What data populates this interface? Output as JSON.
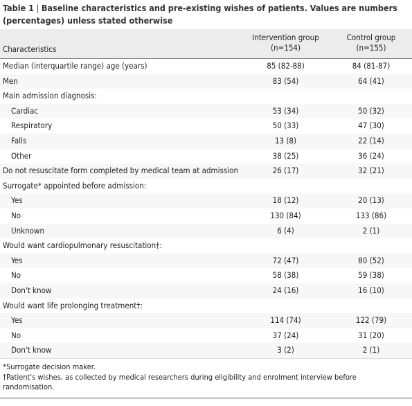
{
  "table_label": "Table 1",
  "title": "Baseline characteristics and pre-existing wishes of patients. Values are numbers (percentages) unless stated otherwise",
  "header": [
    "Characteristics",
    "Intervention group\n(n=154)",
    "Control group\n(n=155)"
  ],
  "rows": [
    {
      "label": "Median (interquartile range) age (years)",
      "cells": [
        "85 (82-88)",
        "84 (81-87)"
      ]
    },
    {
      "label": "Men",
      "cells": [
        "83 (54)",
        "64 (41)"
      ]
    },
    {
      "label": "Main admission diagnosis:"
    },
    {
      "label": "Cardiac",
      "indent": true,
      "cells": [
        "53 (34)",
        "50 (32)"
      ]
    },
    {
      "label": "Respiratory",
      "indent": true,
      "cells": [
        "50 (33)",
        "47 (30)"
      ]
    },
    {
      "label": "Falls",
      "indent": true,
      "cells": [
        "13 (8)",
        "22 (14)"
      ]
    },
    {
      "label": "Other",
      "indent": true,
      "cells": [
        "38 (25)",
        "36 (24)"
      ]
    },
    {
      "label": "Do not resuscitate form completed by medical team at admission",
      "cells": [
        "26 (17)",
        "32 (21)"
      ]
    },
    {
      "label": "Surrogate* appointed before admission:"
    },
    {
      "label": "Yes",
      "indent": true,
      "cells": [
        "18 (12)",
        "20 (13)"
      ]
    },
    {
      "label": "No",
      "indent": true,
      "cells": [
        "130 (84)",
        "133 (86)"
      ]
    },
    {
      "label": "Unknown",
      "indent": true,
      "cells": [
        "6 (4)",
        "2 (1)"
      ]
    },
    {
      "label": "Would want cardiopulmonary resuscitation†:"
    },
    {
      "label": "Yes",
      "indent": true,
      "cells": [
        "72 (47)",
        "80 (52)"
      ]
    },
    {
      "label": "No",
      "indent": true,
      "cells": [
        "58 (38)",
        "59 (38)"
      ]
    },
    {
      "label": "Don't know",
      "indent": true,
      "cells": [
        "24 (16)",
        "16 (10)"
      ]
    },
    {
      "label": "Would want life prolonging treatment†:"
    },
    {
      "label": "Yes",
      "indent": true,
      "cells": [
        "114 (74)",
        "122 (79)"
      ]
    },
    {
      "label": "No",
      "indent": true,
      "cells": [
        "37 (24)",
        "31 (20)"
      ]
    },
    {
      "label": "Don't know",
      "indent": true,
      "cells": [
        "3 (2)",
        "2 (1)"
      ]
    }
  ],
  "footnotes": [
    "*Surrogate decision maker.",
    "†Patient's wishes, as collected by medical researchers during eligibility and enrolment interview before randomisation."
  ]
}
